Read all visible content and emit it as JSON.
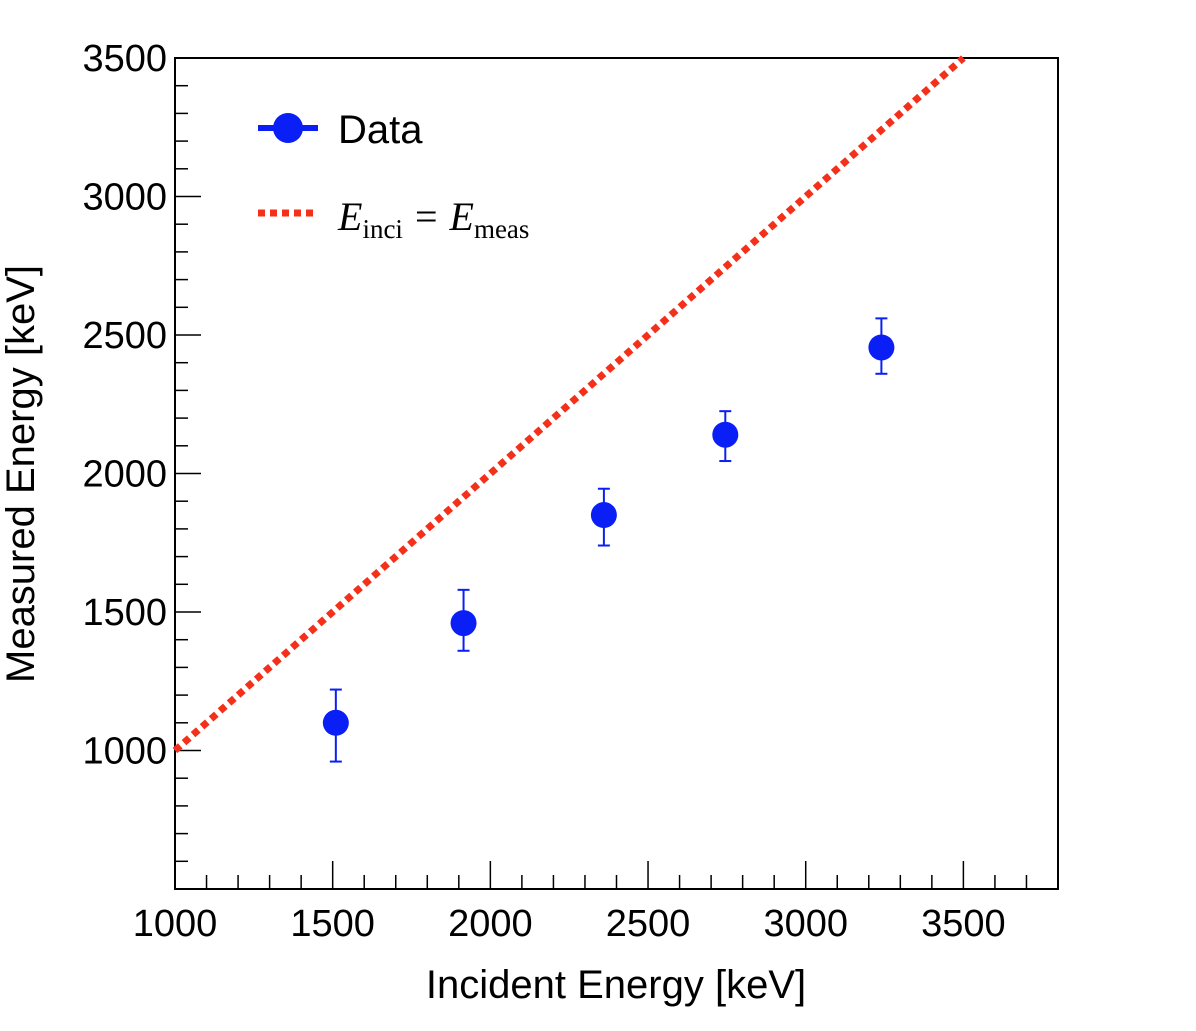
{
  "chart_data": {
    "type": "scatter",
    "title": "",
    "xlabel": "Incident Energy [keV]",
    "ylabel": "Measured Energy [keV]",
    "xlim": [
      1000,
      3800
    ],
    "ylim": [
      500,
      3500
    ],
    "x_ticks": [
      1000,
      1500,
      2000,
      2500,
      3000,
      3500
    ],
    "y_ticks": [
      1000,
      1500,
      2000,
      2500,
      3000,
      3500
    ],
    "x_minor_step": 100,
    "y_minor_step": 100,
    "grid": false,
    "legend_position": "top-left",
    "series": [
      {
        "name": "Data",
        "kind": "points-with-errors",
        "color": "#0a1ff5",
        "points": [
          {
            "x": 1510,
            "y": 1100,
            "err_low": 140,
            "err_high": 120
          },
          {
            "x": 1915,
            "y": 1460,
            "err_low": 100,
            "err_high": 120
          },
          {
            "x": 2360,
            "y": 1850,
            "err_low": 110,
            "err_high": 95
          },
          {
            "x": 2745,
            "y": 2140,
            "err_low": 95,
            "err_high": 85
          },
          {
            "x": 3240,
            "y": 2455,
            "err_low": 95,
            "err_high": 105
          }
        ]
      },
      {
        "name": "E_inci = E_meas",
        "kind": "line",
        "style": "dotted",
        "color": "#f4301a",
        "x": [
          1000,
          3500
        ],
        "y": [
          1000,
          3500
        ]
      }
    ],
    "legend": {
      "data_label": "Data",
      "line_label": {
        "lhs_symbol": "E",
        "lhs_sub": "inci",
        "operator": "=",
        "rhs_symbol": "E",
        "rhs_sub": "meas"
      }
    }
  }
}
